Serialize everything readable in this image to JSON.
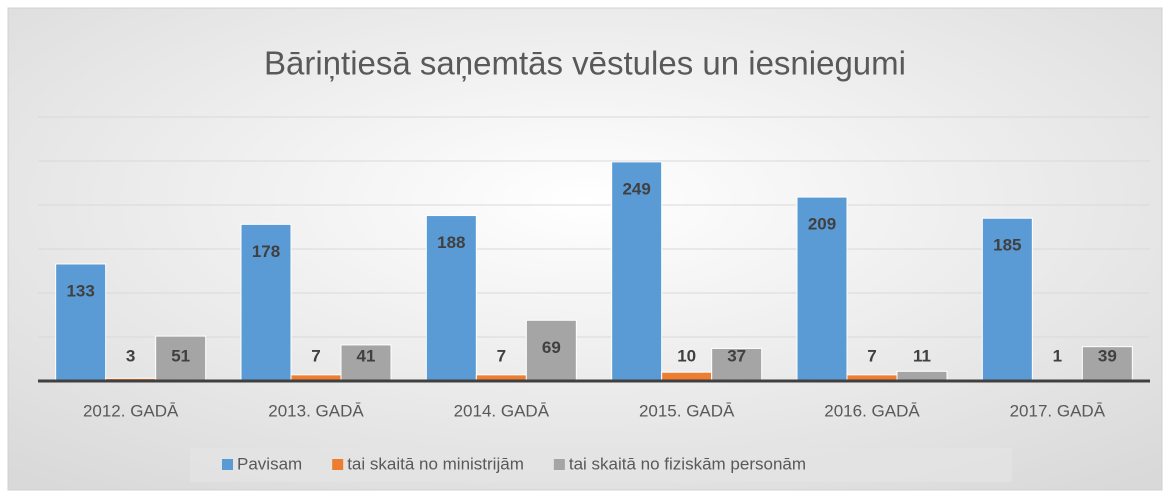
{
  "chart_data": {
    "type": "bar",
    "title": "Bāriņtiesā saņemtās vēstules un iesniegumi",
    "categories": [
      "2012. GADĀ",
      "2013. GADĀ",
      "2014. GADĀ",
      "2015. GADĀ",
      "2016. GADĀ",
      "2017. GADĀ"
    ],
    "series": [
      {
        "name": "Pavisam",
        "color": "#5b9bd5",
        "values": [
          133,
          178,
          188,
          249,
          209,
          185
        ]
      },
      {
        "name": "tai skaitā no ministrijām",
        "color": "#ed7d31",
        "values": [
          3,
          7,
          7,
          10,
          7,
          1
        ]
      },
      {
        "name": "tai skaitā no fiziskām personām",
        "color": "#a5a5a5",
        "values": [
          51,
          41,
          69,
          37,
          11,
          39
        ]
      }
    ],
    "ylim": [
      0,
      300
    ],
    "yticks": [
      0,
      50,
      100,
      150,
      200,
      250,
      300
    ],
    "grid": true,
    "legend": "bottom"
  }
}
